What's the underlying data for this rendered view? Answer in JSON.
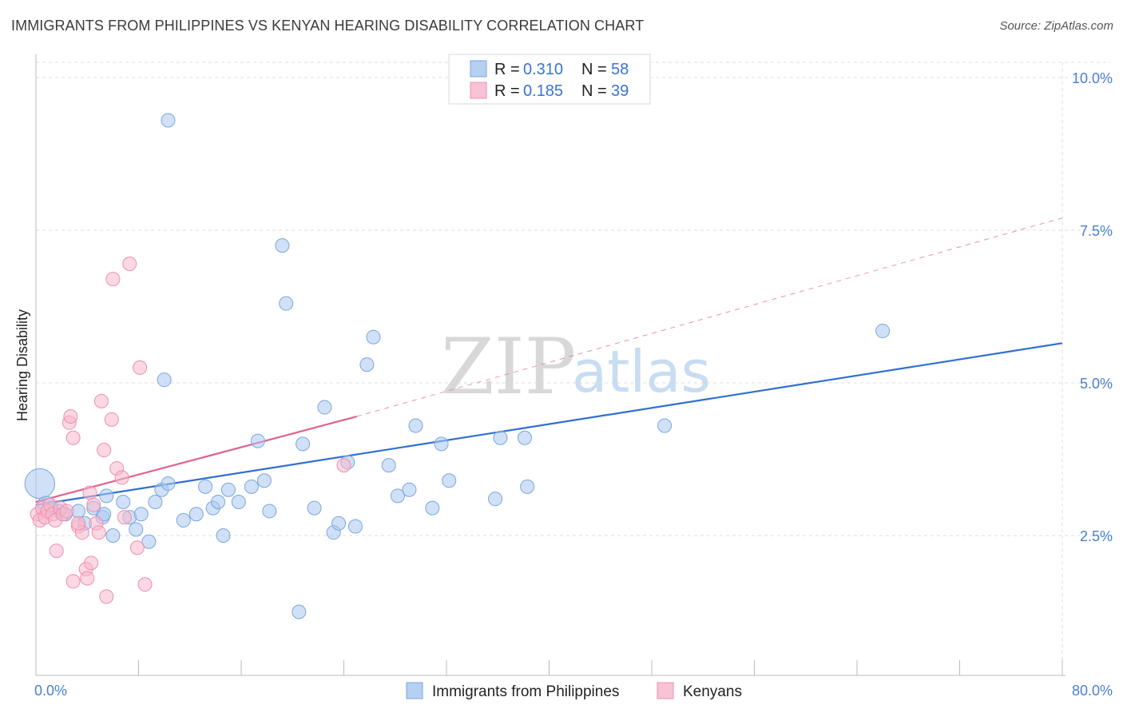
{
  "header": {
    "title": "IMMIGRANTS FROM PHILIPPINES VS KENYAN HEARING DISABILITY CORRELATION CHART",
    "source": "Source: ZipAtlas.com"
  },
  "watermark": {
    "zip": "ZIP",
    "atlas": "atlas"
  },
  "colors": {
    "blue_fill": "#a9c8f0",
    "blue_stroke": "#7aa6e0",
    "blue_line": "#2f6fd0",
    "pink_fill": "#f7b8cc",
    "pink_stroke": "#ee8fae",
    "pink_line": "#e0628e",
    "grid": "#dcdcdc",
    "tick_label": "#4a7fd0"
  },
  "legend": {
    "items": [
      {
        "r_label": "R =",
        "r_value": "0.310",
        "n_label": "N =",
        "n_value": "58",
        "color": "#a9c8f0"
      },
      {
        "r_label": "R =",
        "r_value": "0.185",
        "n_label": "N =",
        "n_value": "39",
        "color": "#f7b8cc"
      }
    ]
  },
  "chart_data": {
    "type": "scatter",
    "title": "IMMIGRANTS FROM PHILIPPINES VS KENYAN HEARING DISABILITY CORRELATION CHART",
    "xlabel": "",
    "ylabel": "Hearing Disability",
    "xlim": [
      0,
      80
    ],
    "ylim": [
      0,
      10.5
    ],
    "x_tick_labels": {
      "min": "0.0%",
      "max": "80.0%"
    },
    "y_ticks": [
      {
        "value": 2.5,
        "label": "2.5%"
      },
      {
        "value": 5.0,
        "label": "5.0%"
      },
      {
        "value": 7.5,
        "label": "7.5%"
      },
      {
        "value": 10.0,
        "label": "10.0%"
      }
    ],
    "grid": true,
    "legend_position": "top-center",
    "series": [
      {
        "name": "Immigrants from Philippines",
        "color": "#a9c8f0",
        "stats": {
          "R": 0.31,
          "N": 58
        },
        "trend": {
          "x0": 0,
          "y0": 3.0,
          "x1": 80,
          "y1": 5.65,
          "style": "solid"
        },
        "points": [
          [
            0.3,
            3.35,
            2.2
          ],
          [
            0.8,
            3.0,
            1.3
          ],
          [
            1.2,
            2.95,
            1.0
          ],
          [
            1.8,
            2.9,
            1.0
          ],
          [
            2.3,
            2.85,
            1.0
          ],
          [
            3.3,
            2.9,
            1.0
          ],
          [
            3.8,
            2.7,
            1.0
          ],
          [
            4.5,
            2.95,
            1.0
          ],
          [
            5.2,
            2.8,
            1.0
          ],
          [
            5.5,
            3.15,
            1.0
          ],
          [
            5.3,
            2.85,
            1.0
          ],
          [
            6.0,
            2.5,
            1.0
          ],
          [
            6.8,
            3.05,
            1.0
          ],
          [
            7.3,
            2.8,
            1.0
          ],
          [
            7.8,
            2.6,
            1.0
          ],
          [
            8.2,
            2.85,
            1.0
          ],
          [
            8.8,
            2.4,
            1.0
          ],
          [
            9.3,
            3.05,
            1.0
          ],
          [
            9.8,
            3.25,
            1.0
          ],
          [
            10.3,
            3.35,
            1.0
          ],
          [
            10.0,
            5.05,
            1.0
          ],
          [
            10.3,
            9.3,
            1.0
          ],
          [
            11.5,
            2.75,
            1.0
          ],
          [
            12.5,
            2.85,
            1.0
          ],
          [
            13.2,
            3.3,
            1.0
          ],
          [
            13.8,
            2.95,
            1.0
          ],
          [
            14.2,
            3.05,
            1.0
          ],
          [
            14.6,
            2.5,
            1.0
          ],
          [
            15.0,
            3.25,
            1.0
          ],
          [
            15.8,
            3.05,
            1.0
          ],
          [
            16.8,
            3.3,
            1.0
          ],
          [
            17.3,
            4.05,
            1.0
          ],
          [
            17.8,
            3.4,
            1.0
          ],
          [
            18.2,
            2.9,
            1.0
          ],
          [
            19.2,
            7.25,
            1.0
          ],
          [
            19.5,
            6.3,
            1.0
          ],
          [
            20.8,
            4.0,
            1.0
          ],
          [
            21.7,
            2.95,
            1.0
          ],
          [
            22.5,
            4.6,
            1.0
          ],
          [
            23.2,
            2.55,
            1.0
          ],
          [
            23.6,
            2.7,
            1.0
          ],
          [
            24.3,
            3.7,
            1.0
          ],
          [
            24.9,
            2.65,
            1.0
          ],
          [
            25.8,
            5.3,
            1.0
          ],
          [
            26.3,
            5.75,
            1.0
          ],
          [
            27.5,
            3.65,
            1.0
          ],
          [
            28.2,
            3.15,
            1.0
          ],
          [
            29.1,
            3.25,
            1.0
          ],
          [
            29.6,
            4.3,
            1.0
          ],
          [
            30.9,
            2.95,
            1.0
          ],
          [
            31.6,
            4.0,
            1.0
          ],
          [
            32.2,
            3.4,
            1.0
          ],
          [
            20.5,
            1.25,
            1.0
          ],
          [
            35.8,
            3.1,
            1.0
          ],
          [
            36.2,
            4.1,
            1.0
          ],
          [
            38.1,
            4.1,
            1.0
          ],
          [
            38.3,
            3.3,
            1.0
          ],
          [
            49.0,
            4.3,
            1.0
          ],
          [
            66.0,
            5.85,
            1.0
          ]
        ]
      },
      {
        "name": "Kenyans",
        "color": "#f7b8cc",
        "stats": {
          "R": 0.185,
          "N": 39
        },
        "trend": {
          "x0": 0,
          "y0": 3.05,
          "x1": 25,
          "y1": 4.45,
          "style": "solid",
          "extend_to": [
            80,
            7.7
          ],
          "extend_style": "dashed"
        },
        "points": [
          [
            0.1,
            2.85,
            1.0
          ],
          [
            0.3,
            2.75,
            1.0
          ],
          [
            0.5,
            2.95,
            1.0
          ],
          [
            0.7,
            2.8,
            1.0
          ],
          [
            0.9,
            2.9,
            1.0
          ],
          [
            1.1,
            3.0,
            1.0
          ],
          [
            1.3,
            2.85,
            1.0
          ],
          [
            1.5,
            2.75,
            1.0
          ],
          [
            1.6,
            2.25,
            1.0
          ],
          [
            1.9,
            2.95,
            1.0
          ],
          [
            2.1,
            2.85,
            1.0
          ],
          [
            2.4,
            2.9,
            1.0
          ],
          [
            2.6,
            4.35,
            1.0
          ],
          [
            2.9,
            4.1,
            1.0
          ],
          [
            2.7,
            4.45,
            1.0
          ],
          [
            2.9,
            1.75,
            1.0
          ],
          [
            3.3,
            2.65,
            1.0
          ],
          [
            3.6,
            2.55,
            1.0
          ],
          [
            3.9,
            1.95,
            1.0
          ],
          [
            4.0,
            1.8,
            1.0
          ],
          [
            4.2,
            3.2,
            1.0
          ],
          [
            4.3,
            2.05,
            1.0
          ],
          [
            4.5,
            3.0,
            1.0
          ],
          [
            4.7,
            2.7,
            1.0
          ],
          [
            4.9,
            2.55,
            1.0
          ],
          [
            5.1,
            4.7,
            1.0
          ],
          [
            5.3,
            3.9,
            1.0
          ],
          [
            5.5,
            1.5,
            1.0
          ],
          [
            5.9,
            4.4,
            1.0
          ],
          [
            6.0,
            6.7,
            1.0
          ],
          [
            6.3,
            3.6,
            1.0
          ],
          [
            6.7,
            3.45,
            1.0
          ],
          [
            6.9,
            2.8,
            1.0
          ],
          [
            7.3,
            6.95,
            1.0
          ],
          [
            7.9,
            2.3,
            1.0
          ],
          [
            8.1,
            5.25,
            1.0
          ],
          [
            8.5,
            1.7,
            1.0
          ],
          [
            3.3,
            2.7,
            1.0
          ],
          [
            24.0,
            3.65,
            1.0
          ]
        ]
      }
    ]
  },
  "bottom_legend": {
    "items": [
      {
        "label": "Immigrants from Philippines",
        "color": "#a9c8f0"
      },
      {
        "label": "Kenyans",
        "color": "#f7b8cc"
      }
    ]
  }
}
